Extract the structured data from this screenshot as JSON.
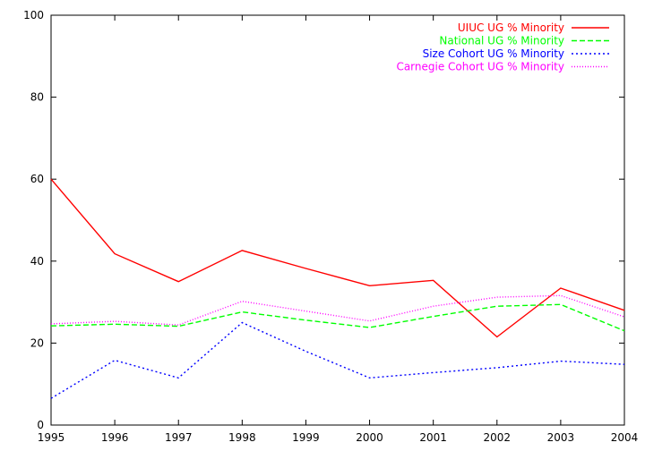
{
  "chart_data": {
    "type": "line",
    "x": [
      1995,
      1996,
      1997,
      1998,
      1999,
      2000,
      2001,
      2002,
      2003,
      2004
    ],
    "xlim": [
      1995,
      2004
    ],
    "ylim": [
      0,
      100
    ],
    "xticks": [
      "1995",
      "1996",
      "1997",
      "1998",
      "1999",
      "2000",
      "2001",
      "2002",
      "2003",
      "2004"
    ],
    "yticks": [
      "0",
      "20",
      "40",
      "60",
      "80",
      "100"
    ],
    "grid": false,
    "legend_position": "top-right",
    "series": [
      {
        "name": "UIUC UG % Minority",
        "color": "#ff0000",
        "style": "solid",
        "values": [
          60.0,
          41.8,
          35.0,
          42.6,
          38.2,
          34.0,
          35.3,
          21.5,
          33.4,
          28.0
        ]
      },
      {
        "name": "National UG % Minority",
        "color": "#00ff00",
        "style": "dashed",
        "values": [
          24.2,
          24.6,
          24.1,
          27.6,
          25.6,
          23.8,
          26.5,
          29.0,
          29.4,
          23.0
        ]
      },
      {
        "name": "Size Cohort UG % Minority",
        "color": "#0000ff",
        "style": "dotted",
        "values": [
          6.5,
          15.8,
          11.5,
          25.0,
          18.0,
          11.5,
          12.8,
          14.0,
          15.6,
          14.8
        ]
      },
      {
        "name": "Carnegie Cohort UG % Minority",
        "color": "#ff00ff",
        "style": "finedotted",
        "values": [
          24.7,
          25.3,
          24.4,
          30.2,
          27.8,
          25.4,
          29.0,
          31.2,
          31.6,
          26.4
        ]
      }
    ]
  }
}
